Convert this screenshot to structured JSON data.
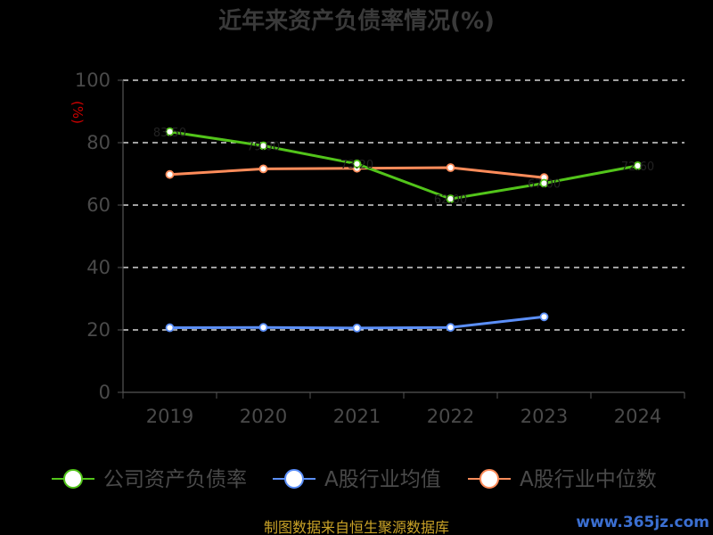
{
  "chart_data": {
    "type": "line",
    "title": "近年来资产负债率情况(%)",
    "ylabel": "(%)",
    "xlabel": "",
    "categories": [
      "2019",
      "2020",
      "2021",
      "2022",
      "2023",
      "2024"
    ],
    "ylim": [
      0,
      100
    ],
    "yticks": [
      0,
      20,
      40,
      60,
      80,
      100
    ],
    "grid": true,
    "legend_position": "bottom",
    "series": [
      {
        "name": "公司资产负债率",
        "color": "#52c41a",
        "values": [
          83.5,
          79.0,
          73.2,
          62.0,
          67.0,
          72.6
        ]
      },
      {
        "name": "A股行业均值",
        "color": "#5b8ff9",
        "values": [
          20.7,
          20.8,
          20.6,
          20.8,
          24.2,
          null
        ]
      },
      {
        "name": "A股行业中位数",
        "color": "#ff8c5a",
        "values": [
          69.8,
          71.6,
          71.8,
          72.0,
          68.8,
          null
        ]
      }
    ]
  },
  "footer": {
    "source": "制图数据来自恒生聚源数据库",
    "watermark": "www.365jz.com"
  }
}
